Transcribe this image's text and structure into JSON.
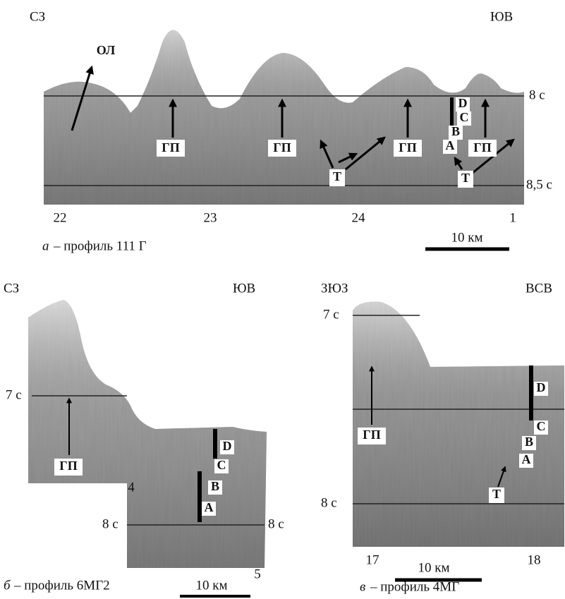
{
  "panel_a": {
    "direction_left": "СЗ",
    "direction_right": "ЮВ",
    "time_ticks": [
      "8 с",
      "8,5 с"
    ],
    "distance_ticks": [
      "22",
      "23",
      "24",
      "1"
    ],
    "scale_bar": "10 км",
    "letter": "а",
    "title": "– профиль 111 Г",
    "labels": [
      "ОЛ",
      "ГП",
      "ГП",
      "ГП",
      "ГП",
      "Т",
      "Т",
      "D",
      "C",
      "B",
      "A"
    ]
  },
  "panel_b": {
    "direction_left": "СЗ",
    "direction_right": "ЮВ",
    "time_ticks": [
      "7 с",
      "8 с",
      "8 с"
    ],
    "distance_ticks": [
      "4",
      "5"
    ],
    "scale_bar": "10 км",
    "letter": "б",
    "title": "– профиль 6МГ2",
    "labels": [
      "ГП",
      "D",
      "C",
      "B",
      "A"
    ]
  },
  "panel_c": {
    "direction_left": "ЗЮЗ",
    "direction_right": "ВСВ",
    "time_ticks": [
      "7 с",
      "8 с"
    ],
    "distance_ticks": [
      "17",
      "18"
    ],
    "scale_bar": "10 км",
    "letter": "в",
    "title": "– профиль 4МГ",
    "labels": [
      "ГП",
      "D",
      "C",
      "B",
      "A",
      "Т"
    ]
  }
}
